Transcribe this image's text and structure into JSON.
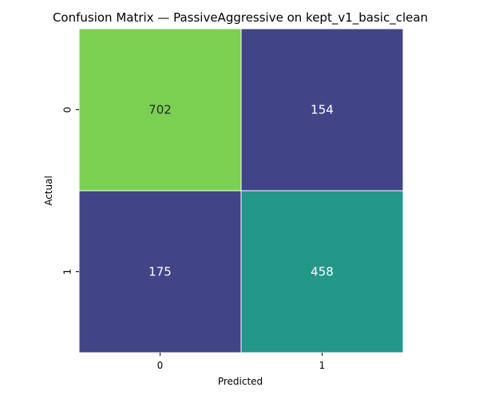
{
  "chart_data": {
    "type": "heatmap",
    "title": "Confusion Matrix — PassiveAggressive on kept_v1_basic_clean",
    "xlabel": "Predicted",
    "ylabel": "Actual",
    "x_categories": [
      "0",
      "1"
    ],
    "y_categories": [
      "0",
      "1"
    ],
    "values": [
      [
        702,
        154
      ],
      [
        175,
        458
      ]
    ],
    "colorbar": false,
    "grid": false,
    "cell_colors": [
      [
        "#7ad151",
        "#414487"
      ],
      [
        "#414487",
        "#22978a"
      ]
    ],
    "text_colors": [
      [
        "#262626",
        "#ffffff"
      ],
      [
        "#ffffff",
        "#ffffff"
      ]
    ],
    "cell_border_color": "#ffffff",
    "tick_color": "#000000"
  }
}
